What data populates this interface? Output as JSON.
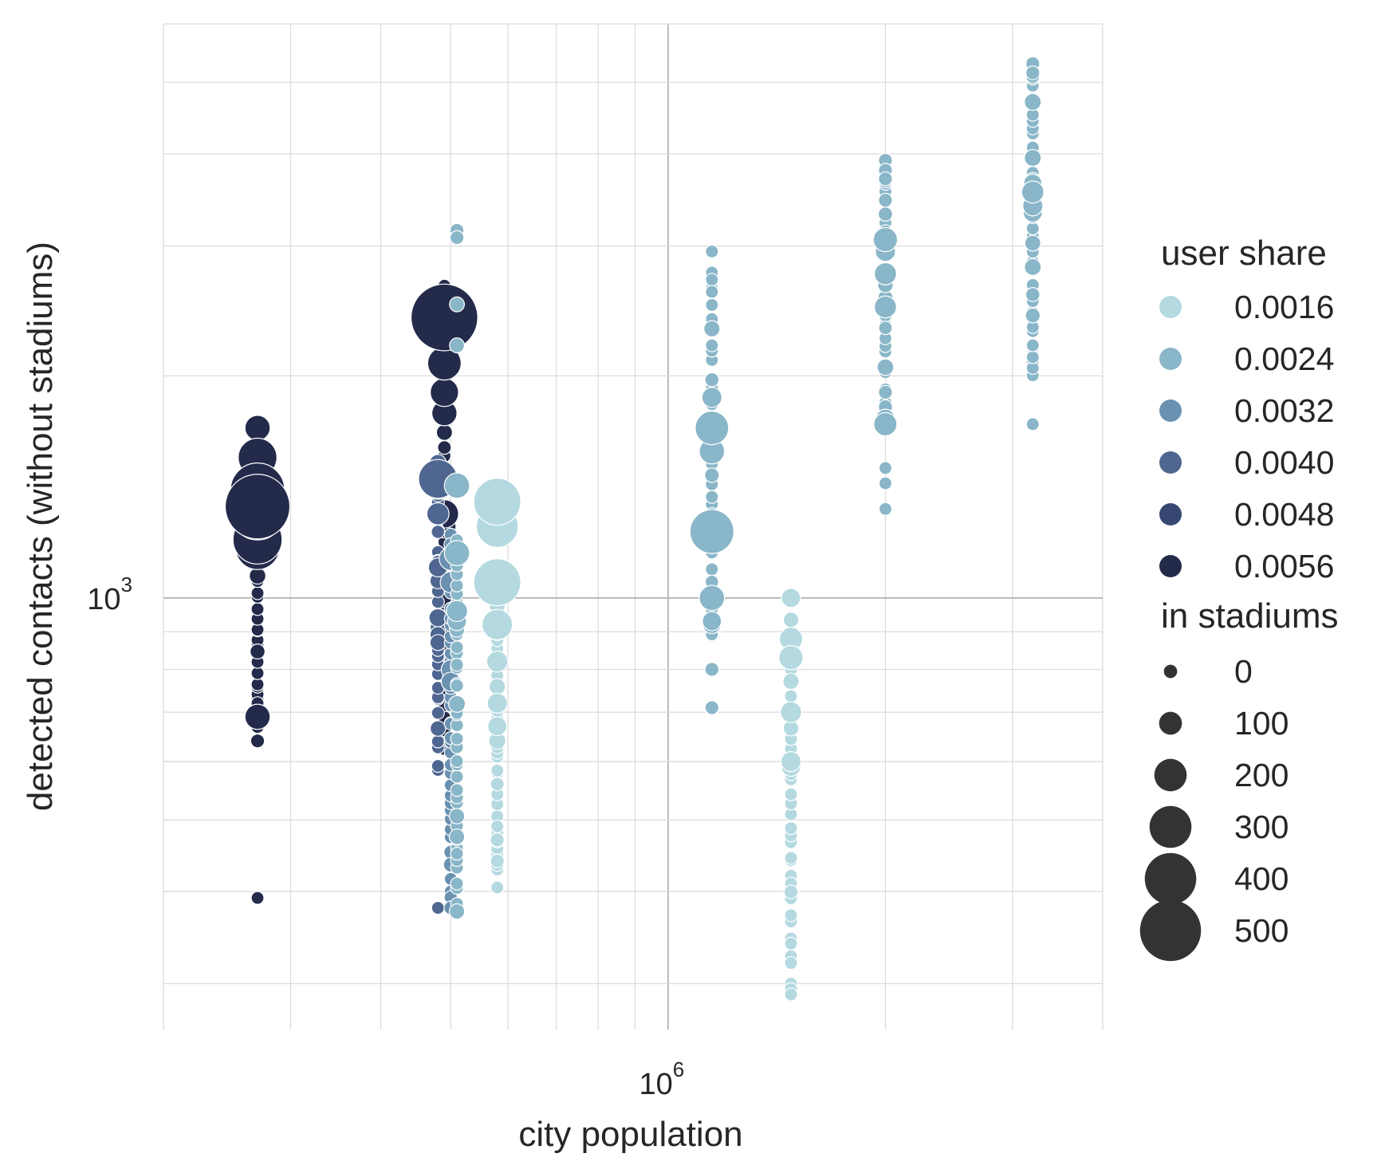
{
  "chart_data": {
    "type": "scatter",
    "xlabel": "city population",
    "ylabel": "detected contacts (without stadiums)",
    "x_scale": "log",
    "y_scale": "log",
    "xlim": [
      200000,
      4000000
    ],
    "ylim": [
      260,
      6000
    ],
    "x_major_ticks": [
      {
        "value": 1000000,
        "base": "10",
        "exp": "6"
      }
    ],
    "y_major_ticks": [
      {
        "value": 1000,
        "base": "10",
        "exp": "3"
      }
    ],
    "grid": true,
    "colors": {
      "0.0016": "#b4d9e0",
      "0.0024": "#89b6c8",
      "0.0032": "#6a91b0",
      "0.0040": "#4e6690",
      "0.0048": "#364872",
      "0.0056": "#232a4a",
      "grid": "#dcdcdc",
      "grid_major": "#b4b4b4",
      "size_legend": "#333333"
    },
    "legend": {
      "placement": "right",
      "hue_title": "user share",
      "hue_entries": [
        {
          "label": "0.0016",
          "color_key": "0.0016"
        },
        {
          "label": "0.0024",
          "color_key": "0.0024"
        },
        {
          "label": "0.0032",
          "color_key": "0.0032"
        },
        {
          "label": "0.0040",
          "color_key": "0.0040"
        },
        {
          "label": "0.0048",
          "color_key": "0.0048"
        },
        {
          "label": "0.0056",
          "color_key": "0.0056"
        }
      ],
      "size_title": "in stadiums",
      "size_entries": [
        {
          "label": "0",
          "value": 0
        },
        {
          "label": "100",
          "value": 100
        },
        {
          "label": "200",
          "value": 200
        },
        {
          "label": "300",
          "value": 300
        },
        {
          "label": "400",
          "value": 400
        },
        {
          "label": "500",
          "value": 500
        }
      ]
    },
    "series": [
      {
        "population": 270000,
        "user_share": "0.0056",
        "y_min": 680,
        "y_max": 1350,
        "highlights": [
          [
            1550,
            250
          ],
          [
            1400,
            400
          ],
          [
            1330,
            500
          ],
          [
            1300,
            380
          ],
          [
            1200,
            350
          ],
          [
            1180,
            250
          ],
          [
            1220,
            150
          ],
          [
            1260,
            120
          ],
          [
            1170,
            300
          ],
          [
            690,
            120
          ]
        ],
        "isolated": [
          [
            1700,
            120
          ],
          [
            1580,
            40
          ],
          [
            392,
            0
          ],
          [
            640,
            10
          ],
          [
            710,
            0
          ],
          [
            720,
            0
          ]
        ],
        "n": 34
      },
      {
        "population": 490000,
        "user_share": "0.0056",
        "y_min": 620,
        "y_max": 2600,
        "highlights": [
          [
            2400,
            520
          ],
          [
            2080,
            200
          ],
          [
            1900,
            150
          ],
          [
            1780,
            120
          ],
          [
            1300,
            150
          ],
          [
            1250,
            100
          ]
        ],
        "isolated": [
          [
            2650,
            0
          ],
          [
            2560,
            10
          ],
          [
            1000,
            60
          ]
        ],
        "n": 40
      },
      {
        "population": 480000,
        "user_share": "0.0040",
        "y_min": 580,
        "y_max": 1500,
        "highlights": [
          [
            1450,
            250
          ],
          [
            1420,
            140
          ],
          [
            1300,
            90
          ]
        ],
        "isolated": [
          [
            1100,
            60
          ],
          [
            940,
            50
          ],
          [
            870,
            30
          ],
          [
            380,
            0
          ]
        ],
        "n": 32
      },
      {
        "population": 500000,
        "user_share": "0.0032",
        "y_min": 380,
        "y_max": 1200,
        "highlights": [
          [
            1130,
            100
          ],
          [
            1050,
            80
          ],
          [
            800,
            60
          ],
          [
            770,
            60
          ]
        ],
        "isolated": [],
        "n": 40
      },
      {
        "population": 510000,
        "user_share": "0.0024",
        "y_min": 380,
        "y_max": 1200,
        "highlights": [
          [
            1420,
            120
          ],
          [
            1150,
            120
          ],
          [
            960,
            80
          ],
          [
            930,
            60
          ]
        ],
        "isolated": [
          [
            3150,
            10
          ],
          [
            3080,
            10
          ],
          [
            2500,
            20
          ],
          [
            2200,
            20
          ],
          [
            450,
            0
          ]
        ],
        "n": 40
      },
      {
        "population": 580000,
        "user_share": "0.0016",
        "y_min": 430,
        "y_max": 1000,
        "highlights": [
          [
            1350,
            330
          ],
          [
            1250,
            280
          ],
          [
            1050,
            330
          ],
          [
            920,
            170
          ],
          [
            820,
            80
          ],
          [
            720,
            70
          ],
          [
            670,
            60
          ],
          [
            640,
            40
          ]
        ],
        "isolated": [
          [
            440,
            10
          ],
          [
            405,
            0
          ],
          [
            470,
            10
          ],
          [
            480,
            0
          ],
          [
            490,
            0
          ]
        ],
        "n": 36
      },
      {
        "population": 1150000,
        "user_share": "0.0024",
        "y_min": 900,
        "y_max": 2900,
        "highlights": [
          [
            1700,
            200
          ],
          [
            1580,
            120
          ],
          [
            1870,
            70
          ],
          [
            1230,
            300
          ],
          [
            1000,
            120
          ],
          [
            930,
            60
          ],
          [
            920,
            50
          ]
        ],
        "isolated": [
          [
            2700,
            0
          ],
          [
            2600,
            0
          ],
          [
            800,
            10
          ],
          [
            710,
            10
          ]
        ],
        "n": 36
      },
      {
        "population": 1480000,
        "user_share": "0.0016",
        "y_min": 320,
        "y_max": 950,
        "highlights": [
          [
            1000,
            60
          ],
          [
            880,
            100
          ],
          [
            860,
            40
          ],
          [
            830,
            110
          ],
          [
            700,
            80
          ],
          [
            600,
            70
          ],
          [
            590,
            60
          ]
        ],
        "isolated": [
          [
            340,
            0
          ],
          [
            320,
            0
          ],
          [
            300,
            0
          ],
          [
            295,
            0
          ],
          [
            290,
            0
          ],
          [
            420,
            0
          ],
          [
            410,
            0
          ],
          [
            400,
            0
          ]
        ],
        "n": 36
      },
      {
        "population": 2000000,
        "user_share": "0.0024",
        "y_min": 1800,
        "y_max": 3900,
        "highlights": [
          [
            3060,
            110
          ],
          [
            2750,
            90
          ],
          [
            2950,
            70
          ],
          [
            2480,
            90
          ],
          [
            1720,
            100
          ],
          [
            1750,
            60
          ]
        ],
        "isolated": [
          [
            3920,
            10
          ],
          [
            3800,
            10
          ],
          [
            3700,
            10
          ],
          [
            1900,
            10
          ],
          [
            1500,
            0
          ],
          [
            1430,
            0
          ],
          [
            1320,
            0
          ]
        ],
        "n": 32
      },
      {
        "population": 3200000,
        "user_share": "0.0024",
        "y_min": 2000,
        "y_max": 5300,
        "highlights": [
          [
            3550,
            90
          ],
          [
            3400,
            70
          ],
          [
            3330,
            60
          ],
          [
            3650,
            50
          ]
        ],
        "isolated": [
          [
            5300,
            10
          ],
          [
            5150,
            10
          ],
          [
            2050,
            0
          ],
          [
            2120,
            0
          ],
          [
            2200,
            0
          ],
          [
            1720,
            0
          ]
        ],
        "n": 40
      }
    ]
  }
}
